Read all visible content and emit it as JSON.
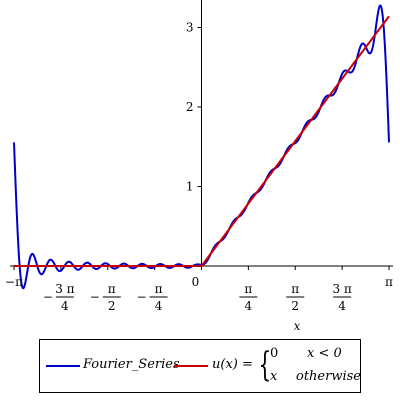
{
  "chart_data": {
    "type": "line",
    "title": "",
    "xlabel": "x",
    "ylabel": "",
    "xlim": [
      -3.14159,
      3.14159
    ],
    "ylim": [
      0,
      3.3
    ],
    "x_ticks": [
      {
        "value": -3.14159,
        "label": "−π",
        "kind": "inline"
      },
      {
        "value": -2.35619,
        "num": "3 π",
        "den": "4",
        "sign": "−",
        "kind": "frac"
      },
      {
        "value": -1.5708,
        "num": "π",
        "den": "2",
        "sign": "−",
        "kind": "frac"
      },
      {
        "value": -0.7854,
        "num": "π",
        "den": "4",
        "sign": "−",
        "kind": "frac"
      },
      {
        "value": 0,
        "label": "0",
        "kind": "inline"
      },
      {
        "value": 0.7854,
        "num": "π",
        "den": "4",
        "sign": "",
        "kind": "frac"
      },
      {
        "value": 1.5708,
        "num": "π",
        "den": "2",
        "sign": "",
        "kind": "frac"
      },
      {
        "value": 2.35619,
        "num": "3 π",
        "den": "4",
        "sign": "",
        "kind": "frac"
      },
      {
        "value": 3.14159,
        "label": "π",
        "kind": "inline"
      }
    ],
    "y_ticks": [
      {
        "value": 1,
        "label": "1"
      },
      {
        "value": 2,
        "label": "2"
      },
      {
        "value": 3,
        "label": "3"
      }
    ],
    "series": [
      {
        "name": "Fourier_Series",
        "color": "#0000c8",
        "generator": "fourier",
        "terms": 20
      },
      {
        "name": "u(x)",
        "color": "#c80000",
        "generator": "ramp"
      }
    ],
    "legend_position": "bottom",
    "grid": false
  },
  "legend": {
    "fourier_label": "Fourier_Series",
    "u_label": "u(x) =",
    "case1_value": "0",
    "case1_cond": "x < 0",
    "case2_value": "x",
    "case2_cond": "otherwise",
    "brace": "{"
  }
}
